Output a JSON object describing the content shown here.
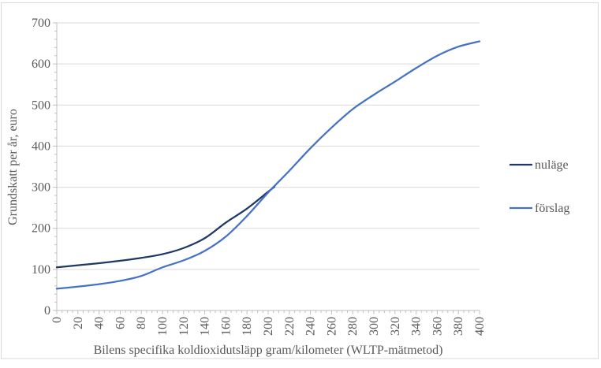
{
  "chart_data": {
    "type": "line",
    "title": "",
    "xlabel": "Bilens specifika koldioxidutsläpp gram/kilometer (WLTP-mätmetod)",
    "ylabel": "Grundskatt per år, euro",
    "xlim": [
      0,
      400
    ],
    "ylim": [
      0,
      700
    ],
    "x_ticks": [
      0,
      20,
      40,
      60,
      80,
      100,
      120,
      140,
      160,
      180,
      200,
      220,
      240,
      260,
      280,
      300,
      320,
      340,
      360,
      380,
      400
    ],
    "y_ticks": [
      0,
      100,
      200,
      300,
      400,
      500,
      600,
      700
    ],
    "x_minor_tick_step": 5,
    "y_minor_tick_step": 20,
    "grid": "horizontal",
    "legend_position": "right",
    "series": [
      {
        "name": "nuläge",
        "color": "#1f3864",
        "x": [
          0,
          20,
          40,
          60,
          80,
          100,
          120,
          140,
          160,
          180,
          200,
          206
        ],
        "values": [
          105,
          110,
          115,
          121,
          128,
          137,
          152,
          176,
          214,
          248,
          289,
          301
        ]
      },
      {
        "name": "förslag",
        "color": "#4472c4",
        "x": [
          0,
          20,
          40,
          60,
          80,
          100,
          120,
          140,
          160,
          180,
          200,
          220,
          240,
          260,
          280,
          300,
          320,
          340,
          360,
          380,
          400
        ],
        "values": [
          53,
          58,
          64,
          72,
          84,
          105,
          122,
          145,
          180,
          230,
          287,
          340,
          395,
          445,
          490,
          525,
          557,
          590,
          620,
          642,
          655
        ]
      }
    ],
    "colors": {
      "axis": "#bfbfbf",
      "grid": "#d9d9d9",
      "tick": "#bfbfbf",
      "text": "#595959",
      "frame": "#d9d9d9",
      "background": "#ffffff"
    }
  }
}
